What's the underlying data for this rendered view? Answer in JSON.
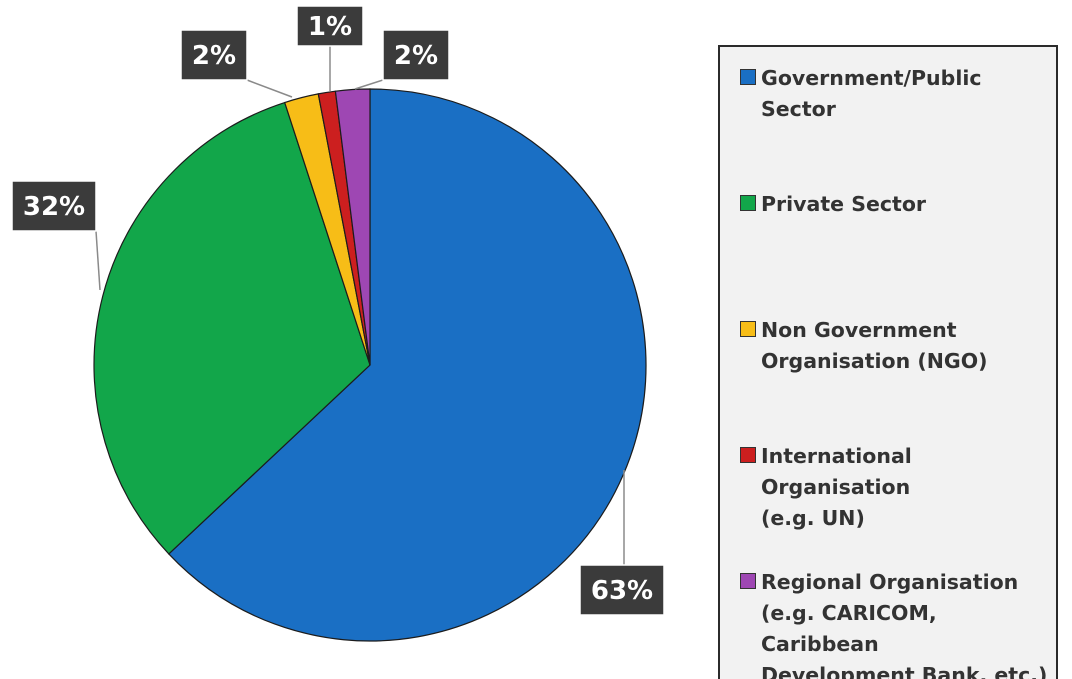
{
  "chart_data": {
    "type": "pie",
    "title": "",
    "categories": [
      "Government/Public Sector",
      "Private Sector",
      "Non Government\nOrganisation (NGO)",
      "International Organisation\n(e.g. UN)",
      "Regional Organisation\n(e.g. CARICOM, Caribbean\nDevelopment Bank, etc.)"
    ],
    "values": [
      63,
      32,
      2,
      1,
      2
    ],
    "data_labels": [
      "63%",
      "32%",
      "2%",
      "1%",
      "2%"
    ],
    "colors": [
      "#1a6fc4",
      "#12a64a",
      "#f7bd17",
      "#cc1f1f",
      "#9e47b3"
    ],
    "label_box_color": "#3b3b3b",
    "start_angle_deg": 0,
    "direction": "clockwise",
    "legend_position": "right"
  }
}
